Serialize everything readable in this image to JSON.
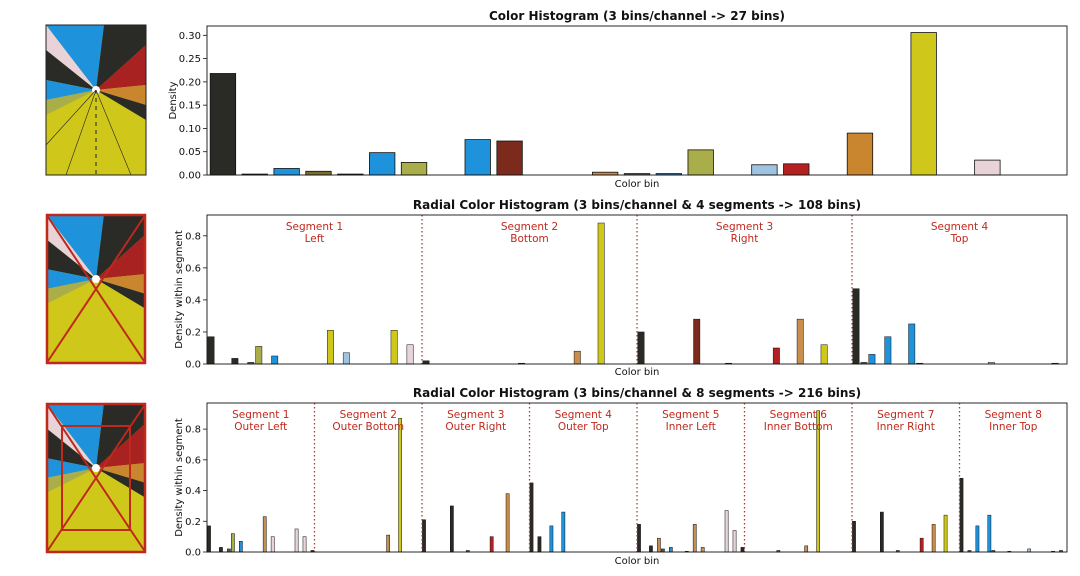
{
  "palette": {
    "black": "#2a2b26",
    "gray": "#55594f",
    "blue": "#1e93dc",
    "olive": "#7a6e2c",
    "olive_dot": "#a9ad4a",
    "steelblue": "#2f76b4",
    "red": "#a82222",
    "brick": "#7c2a1c",
    "tan": "#c98d4c",
    "salmon": "#d0755a",
    "lightblue": "#9fc4e2",
    "crimson": "#b52121",
    "orange": "#c9862f",
    "yellow": "#cfc81a",
    "pink": "#e8d3d8",
    "annot": "#c0281c",
    "segline": "#b03a2e"
  },
  "chart_data": [
    {
      "type": "bar",
      "title": "Color Histogram (3 bins/channel -> 27 bins)",
      "xlabel": "Color bin",
      "ylabel": "Density",
      "ylim": [
        0,
        0.32
      ],
      "yticks": [
        "0.00",
        "0.05",
        "0.10",
        "0.15",
        "0.20",
        "0.25",
        "0.30"
      ],
      "ytick_values": [
        0,
        0.05,
        0.1,
        0.15,
        0.2,
        0.25,
        0.3
      ],
      "n_bins": 27,
      "segments": [],
      "values": [
        0.218,
        0.002,
        0.014,
        0.008,
        0.002,
        0.048,
        0.027,
        0,
        0.076,
        0.073,
        0,
        0,
        0.006,
        0.003,
        0.003,
        0.054,
        0,
        0.022,
        0.024,
        0,
        0.09,
        0,
        0.306,
        0,
        0.032,
        0,
        0
      ],
      "colors": [
        "black",
        "gray",
        "blue",
        "olive",
        "gray",
        "blue",
        "olive_dot",
        "gray",
        "blue",
        "brick",
        "gray",
        "gray",
        "tan",
        "gray",
        "steelblue",
        "olive_dot",
        "gray",
        "lightblue",
        "crimson",
        "gray",
        "orange",
        "gray",
        "yellow",
        "gray",
        "pink",
        "gray",
        "gray"
      ]
    },
    {
      "type": "bar",
      "title": "Radial Color Histogram (3 bins/channel & 4 segments -> 108 bins)",
      "xlabel": "Color bin",
      "ylabel": "Density within segment",
      "ylim": [
        0,
        0.93
      ],
      "yticks": [
        "0.0",
        "0.2",
        "0.4",
        "0.6",
        "0.8"
      ],
      "ytick_values": [
        0,
        0.2,
        0.4,
        0.6,
        0.8
      ],
      "n_bins": 108,
      "segments": [
        {
          "line1": "Segment 1",
          "line2": "Left"
        },
        {
          "line1": "Segment 2",
          "line2": "Bottom"
        },
        {
          "line1": "Segment 3",
          "line2": "Right"
        },
        {
          "line1": "Segment 4",
          "line2": "Top"
        }
      ],
      "nonzero": [
        [
          0,
          0.17,
          "black"
        ],
        [
          3,
          0.035,
          "black"
        ],
        [
          5,
          0.01,
          "gray"
        ],
        [
          6,
          0.11,
          "olive_dot"
        ],
        [
          8,
          0.05,
          "blue"
        ],
        [
          15,
          0.21,
          "yellow"
        ],
        [
          17,
          0.07,
          "lightblue"
        ],
        [
          23,
          0.21,
          "yellow"
        ],
        [
          25,
          0.12,
          "pink"
        ],
        [
          27,
          0.02,
          "black"
        ],
        [
          39,
          0.005,
          "gray"
        ],
        [
          46,
          0.08,
          "tan"
        ],
        [
          49,
          0.88,
          "yellow"
        ],
        [
          54,
          0.2,
          "black"
        ],
        [
          61,
          0.28,
          "brick"
        ],
        [
          65,
          0.005,
          "gray"
        ],
        [
          71,
          0.1,
          "crimson"
        ],
        [
          74,
          0.28,
          "tan"
        ],
        [
          77,
          0.12,
          "yellow"
        ],
        [
          81,
          0.47,
          "black"
        ],
        [
          82,
          0.01,
          "gray"
        ],
        [
          83,
          0.06,
          "blue"
        ],
        [
          85,
          0.17,
          "blue"
        ],
        [
          88,
          0.25,
          "blue"
        ],
        [
          89,
          0.005,
          "gray"
        ],
        [
          98,
          0.01,
          "lightblue"
        ],
        [
          106,
          0.005,
          "gray"
        ]
      ]
    },
    {
      "type": "bar",
      "title": "Radial Color Histogram (3 bins/channel & 8 segments -> 216 bins)",
      "xlabel": "Color bin",
      "ylabel": "Density within segment",
      "ylim": [
        0,
        0.97
      ],
      "yticks": [
        "0.0",
        "0.2",
        "0.4",
        "0.6",
        "0.8"
      ],
      "ytick_values": [
        0,
        0.2,
        0.4,
        0.6,
        0.8
      ],
      "n_bins": 216,
      "segments": [
        {
          "line1": "Segment 1",
          "line2": "Outer Left"
        },
        {
          "line1": "Segment 2",
          "line2": "Outer Bottom"
        },
        {
          "line1": "Segment 3",
          "line2": "Outer Right"
        },
        {
          "line1": "Segment 4",
          "line2": "Outer Top"
        },
        {
          "line1": "Segment 5",
          "line2": "Inner Left"
        },
        {
          "line1": "Segment 6",
          "line2": "Inner Bottom"
        },
        {
          "line1": "Segment 7",
          "line2": "Inner Right"
        },
        {
          "line1": "Segment 8",
          "line2": "Inner Top"
        }
      ],
      "nonzero": [
        [
          0,
          0.17,
          "black"
        ],
        [
          3,
          0.03,
          "black"
        ],
        [
          5,
          0.02,
          "gray"
        ],
        [
          6,
          0.12,
          "olive_dot"
        ],
        [
          8,
          0.07,
          "blue"
        ],
        [
          14,
          0.23,
          "tan"
        ],
        [
          16,
          0.1,
          "pink"
        ],
        [
          22,
          0.15,
          "pink"
        ],
        [
          24,
          0.1,
          "pink"
        ],
        [
          26,
          0.01,
          "black"
        ],
        [
          45,
          0.11,
          "tan"
        ],
        [
          48,
          0.87,
          "yellow"
        ],
        [
          54,
          0.21,
          "black"
        ],
        [
          61,
          0.3,
          "black"
        ],
        [
          65,
          0.01,
          "gray"
        ],
        [
          71,
          0.1,
          "crimson"
        ],
        [
          75,
          0.38,
          "tan"
        ],
        [
          81,
          0.45,
          "black"
        ],
        [
          83,
          0.1,
          "black"
        ],
        [
          86,
          0.17,
          "blue"
        ],
        [
          89,
          0.26,
          "blue"
        ],
        [
          108,
          0.18,
          "black"
        ],
        [
          111,
          0.04,
          "black"
        ],
        [
          113,
          0.09,
          "tan"
        ],
        [
          114,
          0.02,
          "gray"
        ],
        [
          116,
          0.03,
          "blue"
        ],
        [
          120,
          0.005,
          "gray"
        ],
        [
          122,
          0.18,
          "tan"
        ],
        [
          124,
          0.03,
          "tan"
        ],
        [
          130,
          0.27,
          "pink"
        ],
        [
          132,
          0.14,
          "pink"
        ],
        [
          134,
          0.03,
          "black"
        ],
        [
          143,
          0.01,
          "gray"
        ],
        [
          150,
          0.04,
          "tan"
        ],
        [
          153,
          0.92,
          "yellow"
        ],
        [
          162,
          0.2,
          "black"
        ],
        [
          169,
          0.26,
          "black"
        ],
        [
          173,
          0.01,
          "gray"
        ],
        [
          179,
          0.09,
          "crimson"
        ],
        [
          182,
          0.18,
          "tan"
        ],
        [
          185,
          0.24,
          "yellow"
        ],
        [
          189,
          0.48,
          "black"
        ],
        [
          191,
          0.01,
          "gray"
        ],
        [
          193,
          0.17,
          "blue"
        ],
        [
          196,
          0.24,
          "blue"
        ],
        [
          197,
          0.01,
          "gray"
        ],
        [
          201,
          0.005,
          "gray"
        ],
        [
          206,
          0.02,
          "lightblue"
        ],
        [
          212,
          0.005,
          "gray"
        ],
        [
          214,
          0.01,
          "gray"
        ]
      ]
    }
  ]
}
